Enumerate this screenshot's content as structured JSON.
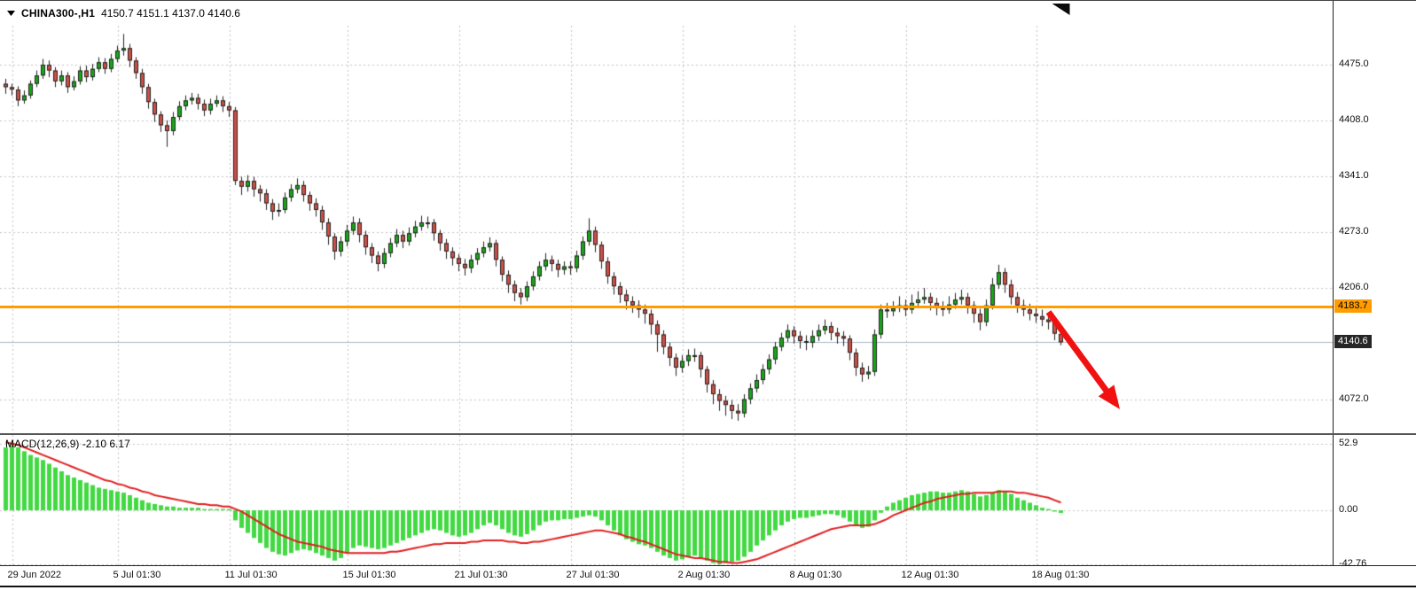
{
  "header": {
    "symbol": "CHINA300-,H1",
    "ohlc": "4150.7 4151.1 4137.0 4140.6"
  },
  "macd_panel": {
    "label": "MACD(12,26,9) -2.10 6.17"
  },
  "colors": {
    "bull": "#18a818",
    "bear": "#cd5048",
    "candle_outline": "#222222",
    "grid": "#c4c4c4",
    "price_line": "#ff9d00",
    "bid_line": "#a8b8c8",
    "hist": "#42d942",
    "signal": "#e01f1f",
    "arrow": "#f21111",
    "tag_orange_bg": "#ff9d00",
    "bid_tag_bg": "#262626"
  },
  "chart_data": {
    "type": "candlestick",
    "symbol": "CHINA300-",
    "timeframe": "H1",
    "last_ohlc": {
      "open": 4150.7,
      "high": 4151.1,
      "low": 4137.0,
      "close": 4140.6
    },
    "price_ticks": [
      "4475.0",
      "4408.0",
      "4341.0",
      "4273.0",
      "4206.0",
      "4072.0"
    ],
    "price_range": [
      4031,
      4522
    ],
    "price_line": {
      "value": 4183.7,
      "label": "4183.7"
    },
    "bid": {
      "value": 4140.6,
      "label": "4140.6"
    },
    "x_labels": [
      {
        "text": "29 Jun 2022",
        "index": 1
      },
      {
        "text": "5 Jul 01:30",
        "index": 18
      },
      {
        "text": "11 Jul 01:30",
        "index": 36
      },
      {
        "text": "15 Jul 01:30",
        "index": 55
      },
      {
        "text": "21 Jul 01:30",
        "index": 73
      },
      {
        "text": "27 Jul 01:30",
        "index": 91
      },
      {
        "text": "2 Aug 01:30",
        "index": 109
      },
      {
        "text": "8 Aug 01:30",
        "index": 127
      },
      {
        "text": "12 Aug 01:30",
        "index": 145
      },
      {
        "text": "18 Aug 01:30",
        "index": 166
      }
    ],
    "candles": [
      [
        4452,
        4458,
        4440,
        4448
      ],
      [
        4448,
        4452,
        4438,
        4445
      ],
      [
        4445,
        4449,
        4425,
        4432
      ],
      [
        4432,
        4444,
        4428,
        4438
      ],
      [
        4438,
        4456,
        4434,
        4452
      ],
      [
        4452,
        4468,
        4448,
        4462
      ],
      [
        4462,
        4482,
        4458,
        4475
      ],
      [
        4475,
        4480,
        4460,
        4468
      ],
      [
        4468,
        4472,
        4448,
        4455
      ],
      [
        4455,
        4468,
        4450,
        4462
      ],
      [
        4462,
        4466,
        4441,
        4448
      ],
      [
        4448,
        4461,
        4444,
        4455
      ],
      [
        4455,
        4473,
        4451,
        4468
      ],
      [
        4468,
        4474,
        4454,
        4460
      ],
      [
        4460,
        4476,
        4456,
        4470
      ],
      [
        4470,
        4484,
        4466,
        4478
      ],
      [
        4478,
        4483,
        4464,
        4470
      ],
      [
        4470,
        4488,
        4466,
        4482
      ],
      [
        4482,
        4498,
        4478,
        4492
      ],
      [
        4492,
        4512,
        4486,
        4495
      ],
      [
        4495,
        4500,
        4472,
        4480
      ],
      [
        4480,
        4484,
        4458,
        4465
      ],
      [
        4465,
        4470,
        4440,
        4448
      ],
      [
        4448,
        4452,
        4422,
        4430
      ],
      [
        4430,
        4434,
        4406,
        4415
      ],
      [
        4415,
        4419,
        4394,
        4402
      ],
      [
        4402,
        4408,
        4376,
        4395
      ],
      [
        4395,
        4418,
        4390,
        4412
      ],
      [
        4412,
        4431,
        4408,
        4425
      ],
      [
        4425,
        4438,
        4420,
        4432
      ],
      [
        4432,
        4441,
        4427,
        4435
      ],
      [
        4435,
        4440,
        4421,
        4428
      ],
      [
        4428,
        4433,
        4413,
        4420
      ],
      [
        4420,
        4434,
        4415,
        4428
      ],
      [
        4428,
        4438,
        4424,
        4432
      ],
      [
        4432,
        4437,
        4418,
        4425
      ],
      [
        4425,
        4430,
        4412,
        4420
      ],
      [
        4420,
        4424,
        4330,
        4335
      ],
      [
        4335,
        4340,
        4318,
        4328
      ],
      [
        4328,
        4342,
        4322,
        4335
      ],
      [
        4335,
        4340,
        4316,
        4325
      ],
      [
        4325,
        4330,
        4310,
        4320
      ],
      [
        4320,
        4325,
        4300,
        4308
      ],
      [
        4308,
        4313,
        4288,
        4298
      ],
      [
        4298,
        4308,
        4292,
        4300
      ],
      [
        4300,
        4321,
        4296,
        4315
      ],
      [
        4315,
        4331,
        4310,
        4325
      ],
      [
        4325,
        4338,
        4320,
        4330
      ],
      [
        4330,
        4335,
        4310,
        4318
      ],
      [
        4318,
        4322,
        4299,
        4308
      ],
      [
        4308,
        4314,
        4292,
        4300
      ],
      [
        4300,
        4305,
        4276,
        4285
      ],
      [
        4285,
        4290,
        4258,
        4268
      ],
      [
        4268,
        4272,
        4240,
        4250
      ],
      [
        4250,
        4268,
        4244,
        4262
      ],
      [
        4262,
        4282,
        4256,
        4275
      ],
      [
        4275,
        4292,
        4270,
        4285
      ],
      [
        4285,
        4290,
        4261,
        4270
      ],
      [
        4270,
        4275,
        4246,
        4255
      ],
      [
        4255,
        4260,
        4236,
        4245
      ],
      [
        4245,
        4250,
        4226,
        4235
      ],
      [
        4235,
        4254,
        4230,
        4248
      ],
      [
        4248,
        4266,
        4243,
        4260
      ],
      [
        4260,
        4277,
        4255,
        4270
      ],
      [
        4270,
        4275,
        4254,
        4262
      ],
      [
        4262,
        4279,
        4257,
        4272
      ],
      [
        4272,
        4287,
        4267,
        4280
      ],
      [
        4280,
        4293,
        4275,
        4285
      ],
      [
        4285,
        4292,
        4278,
        4285
      ],
      [
        4285,
        4289,
        4263,
        4272
      ],
      [
        4272,
        4276,
        4251,
        4260
      ],
      [
        4260,
        4265,
        4241,
        4250
      ],
      [
        4250,
        4255,
        4233,
        4242
      ],
      [
        4242,
        4247,
        4226,
        4235
      ],
      [
        4235,
        4241,
        4221,
        4230
      ],
      [
        4230,
        4246,
        4224,
        4240
      ],
      [
        4240,
        4254,
        4234,
        4248
      ],
      [
        4248,
        4262,
        4243,
        4255
      ],
      [
        4255,
        4267,
        4250,
        4260
      ],
      [
        4260,
        4264,
        4232,
        4240
      ],
      [
        4240,
        4244,
        4214,
        4222
      ],
      [
        4222,
        4227,
        4200,
        4210
      ],
      [
        4210,
        4215,
        4190,
        4200
      ],
      [
        4200,
        4206,
        4186,
        4195
      ],
      [
        4195,
        4214,
        4190,
        4208
      ],
      [
        4208,
        4226,
        4203,
        4220
      ],
      [
        4220,
        4238,
        4215,
        4232
      ],
      [
        4232,
        4248,
        4227,
        4240
      ],
      [
        4240,
        4245,
        4226,
        4235
      ],
      [
        4235,
        4240,
        4219,
        4228
      ],
      [
        4228,
        4238,
        4222,
        4232
      ],
      [
        4232,
        4238,
        4222,
        4230
      ],
      [
        4230,
        4251,
        4225,
        4245
      ],
      [
        4245,
        4268,
        4240,
        4262
      ],
      [
        4262,
        4290,
        4257,
        4275
      ],
      [
        4275,
        4280,
        4249,
        4258
      ],
      [
        4258,
        4262,
        4229,
        4238
      ],
      [
        4238,
        4243,
        4211,
        4220
      ],
      [
        4220,
        4225,
        4198,
        4208
      ],
      [
        4208,
        4213,
        4188,
        4198
      ],
      [
        4198,
        4204,
        4180,
        4190
      ],
      [
        4190,
        4196,
        4176,
        4185
      ],
      [
        4185,
        4191,
        4170,
        4180
      ],
      [
        4180,
        4186,
        4163,
        4175
      ],
      [
        4175,
        4180,
        4150,
        4162
      ],
      [
        4162,
        4167,
        4129,
        4150
      ],
      [
        4150,
        4155,
        4126,
        4135
      ],
      [
        4135,
        4140,
        4112,
        4122
      ],
      [
        4122,
        4127,
        4100,
        4110
      ],
      [
        4110,
        4125,
        4104,
        4118
      ],
      [
        4118,
        4132,
        4112,
        4125
      ],
      [
        4125,
        4133,
        4117,
        4125
      ],
      [
        4125,
        4129,
        4098,
        4108
      ],
      [
        4108,
        4112,
        4080,
        4090
      ],
      [
        4090,
        4095,
        4066,
        4078
      ],
      [
        4078,
        4084,
        4058,
        4070
      ],
      [
        4070,
        4076,
        4052,
        4065
      ],
      [
        4065,
        4071,
        4048,
        4058
      ],
      [
        4058,
        4066,
        4046,
        4055
      ],
      [
        4055,
        4078,
        4050,
        4072
      ],
      [
        4072,
        4091,
        4066,
        4085
      ],
      [
        4085,
        4102,
        4080,
        4095
      ],
      [
        4095,
        4114,
        4090,
        4108
      ],
      [
        4108,
        4126,
        4102,
        4120
      ],
      [
        4120,
        4141,
        4114,
        4135
      ],
      [
        4135,
        4152,
        4130,
        4146
      ],
      [
        4146,
        4162,
        4141,
        4155
      ],
      [
        4155,
        4160,
        4139,
        4148
      ],
      [
        4148,
        4154,
        4133,
        4142
      ],
      [
        4142,
        4149,
        4131,
        4140
      ],
      [
        4140,
        4155,
        4134,
        4148
      ],
      [
        4148,
        4162,
        4142,
        4155
      ],
      [
        4155,
        4168,
        4150,
        4160
      ],
      [
        4160,
        4165,
        4143,
        4152
      ],
      [
        4152,
        4158,
        4139,
        4148
      ],
      [
        4148,
        4154,
        4136,
        4145
      ],
      [
        4145,
        4149,
        4119,
        4128
      ],
      [
        4128,
        4133,
        4100,
        4110
      ],
      [
        4110,
        4116,
        4093,
        4102
      ],
      [
        4102,
        4112,
        4096,
        4105
      ],
      [
        4105,
        4156,
        4100,
        4150
      ],
      [
        4150,
        4186,
        4145,
        4180
      ],
      [
        4180,
        4188,
        4170,
        4178
      ],
      [
        4178,
        4190,
        4172,
        4182
      ],
      [
        4182,
        4196,
        4177,
        4185
      ],
      [
        4185,
        4192,
        4172,
        4180
      ],
      [
        4180,
        4198,
        4175,
        4188
      ],
      [
        4188,
        4202,
        4183,
        4192
      ],
      [
        4192,
        4206,
        4187,
        4195
      ],
      [
        4195,
        4200,
        4179,
        4188
      ],
      [
        4188,
        4194,
        4173,
        4182
      ],
      [
        4182,
        4190,
        4172,
        4180
      ],
      [
        4180,
        4196,
        4175,
        4186
      ],
      [
        4186,
        4200,
        4181,
        4192
      ],
      [
        4192,
        4204,
        4186,
        4195
      ],
      [
        4195,
        4200,
        4175,
        4185
      ],
      [
        4185,
        4190,
        4164,
        4175
      ],
      [
        4175,
        4181,
        4155,
        4165
      ],
      [
        4165,
        4192,
        4160,
        4185
      ],
      [
        4185,
        4218,
        4180,
        4210
      ],
      [
        4210,
        4234,
        4205,
        4225
      ],
      [
        4225,
        4230,
        4200,
        4210
      ],
      [
        4210,
        4216,
        4186,
        4195
      ],
      [
        4195,
        4201,
        4176,
        4185
      ],
      [
        4185,
        4192,
        4172,
        4180
      ],
      [
        4180,
        4187,
        4167,
        4175
      ],
      [
        4175,
        4183,
        4164,
        4172
      ],
      [
        4172,
        4180,
        4160,
        4168
      ],
      [
        4168,
        4176,
        4156,
        4165
      ],
      [
        4165,
        4170,
        4143,
        4151
      ],
      [
        4150.7,
        4151.1,
        4137.0,
        4140.6
      ]
    ],
    "macd": {
      "params": "12,26,9",
      "macd_value": -2.1,
      "signal_value": 6.17,
      "ticks": [
        "52.9",
        "0.00",
        "-42.76"
      ],
      "y_range": [
        -43.7,
        59.9
      ],
      "histogram": [
        50,
        52,
        50,
        47,
        44,
        42,
        40,
        37,
        34,
        31,
        28,
        26,
        24,
        22,
        20,
        18,
        17,
        16,
        15,
        14,
        12,
        10,
        8,
        6,
        5,
        4,
        3,
        3,
        2,
        2,
        2,
        2,
        1,
        1,
        1,
        1,
        1,
        -8,
        -14,
        -18,
        -22,
        -26,
        -30,
        -33,
        -35,
        -36,
        -34,
        -32,
        -31,
        -32,
        -34,
        -36,
        -38,
        -40,
        -38,
        -34,
        -30,
        -28,
        -29,
        -30,
        -31,
        -30,
        -28,
        -26,
        -24,
        -22,
        -20,
        -18,
        -16,
        -15,
        -16,
        -18,
        -20,
        -21,
        -20,
        -18,
        -15,
        -12,
        -10,
        -12,
        -15,
        -18,
        -20,
        -21,
        -19,
        -16,
        -12,
        -9,
        -8,
        -8,
        -7,
        -7,
        -6,
        -5,
        -4,
        -5,
        -8,
        -12,
        -16,
        -20,
        -23,
        -25,
        -27,
        -28,
        -30,
        -33,
        -36,
        -38,
        -40,
        -39,
        -37,
        -36,
        -38,
        -40,
        -42,
        -43,
        -42,
        -41,
        -40,
        -37,
        -33,
        -28,
        -24,
        -20,
        -16,
        -12,
        -9,
        -7,
        -6,
        -6,
        -5,
        -4,
        -3,
        -3,
        -4,
        -6,
        -9,
        -12,
        -14,
        -13,
        -8,
        -2,
        3,
        6,
        8,
        10,
        12,
        13,
        14,
        15,
        15,
        14,
        14,
        15,
        16,
        15,
        13,
        11,
        12,
        14,
        16,
        15,
        13,
        10,
        8,
        6,
        4,
        2,
        1,
        -1,
        -2.1
      ],
      "signal": [
        54,
        53,
        52,
        50,
        48,
        46,
        44,
        42,
        40,
        38,
        36,
        34,
        32,
        30,
        28,
        26,
        24,
        23,
        21,
        20,
        18,
        17,
        15,
        14,
        12,
        11,
        10,
        9,
        8,
        7,
        6,
        5,
        5,
        4,
        4,
        3,
        3,
        1,
        -1,
        -4,
        -7,
        -10,
        -13,
        -16,
        -19,
        -21,
        -23,
        -25,
        -26,
        -27,
        -28,
        -29,
        -31,
        -32,
        -33,
        -34,
        -34,
        -34,
        -34,
        -34,
        -34,
        -34,
        -33,
        -33,
        -32,
        -31,
        -30,
        -29,
        -28,
        -27,
        -27,
        -26,
        -26,
        -26,
        -26,
        -25,
        -25,
        -24,
        -24,
        -24,
        -24,
        -25,
        -25,
        -26,
        -26,
        -25,
        -25,
        -24,
        -23,
        -22,
        -21,
        -20,
        -19,
        -18,
        -17,
        -16,
        -16,
        -17,
        -18,
        -19,
        -21,
        -22,
        -24,
        -25,
        -27,
        -29,
        -31,
        -33,
        -35,
        -36,
        -37,
        -38,
        -38,
        -39,
        -40,
        -41,
        -41,
        -42,
        -42,
        -41,
        -40,
        -39,
        -37,
        -35,
        -33,
        -31,
        -29,
        -27,
        -25,
        -23,
        -21,
        -19,
        -17,
        -15,
        -14,
        -13,
        -12,
        -12,
        -12,
        -12,
        -11,
        -9,
        -7,
        -4,
        -2,
        0,
        2,
        4,
        6,
        7,
        9,
        10,
        11,
        12,
        13,
        13,
        14,
        14,
        14,
        14,
        15,
        15,
        15,
        14,
        14,
        13,
        12,
        11,
        10,
        8,
        6.17
      ]
    },
    "annotations": [
      {
        "type": "arrow",
        "from_index": 168,
        "from_price": 4177,
        "to_index": 179.5,
        "to_price": 4060
      }
    ]
  }
}
